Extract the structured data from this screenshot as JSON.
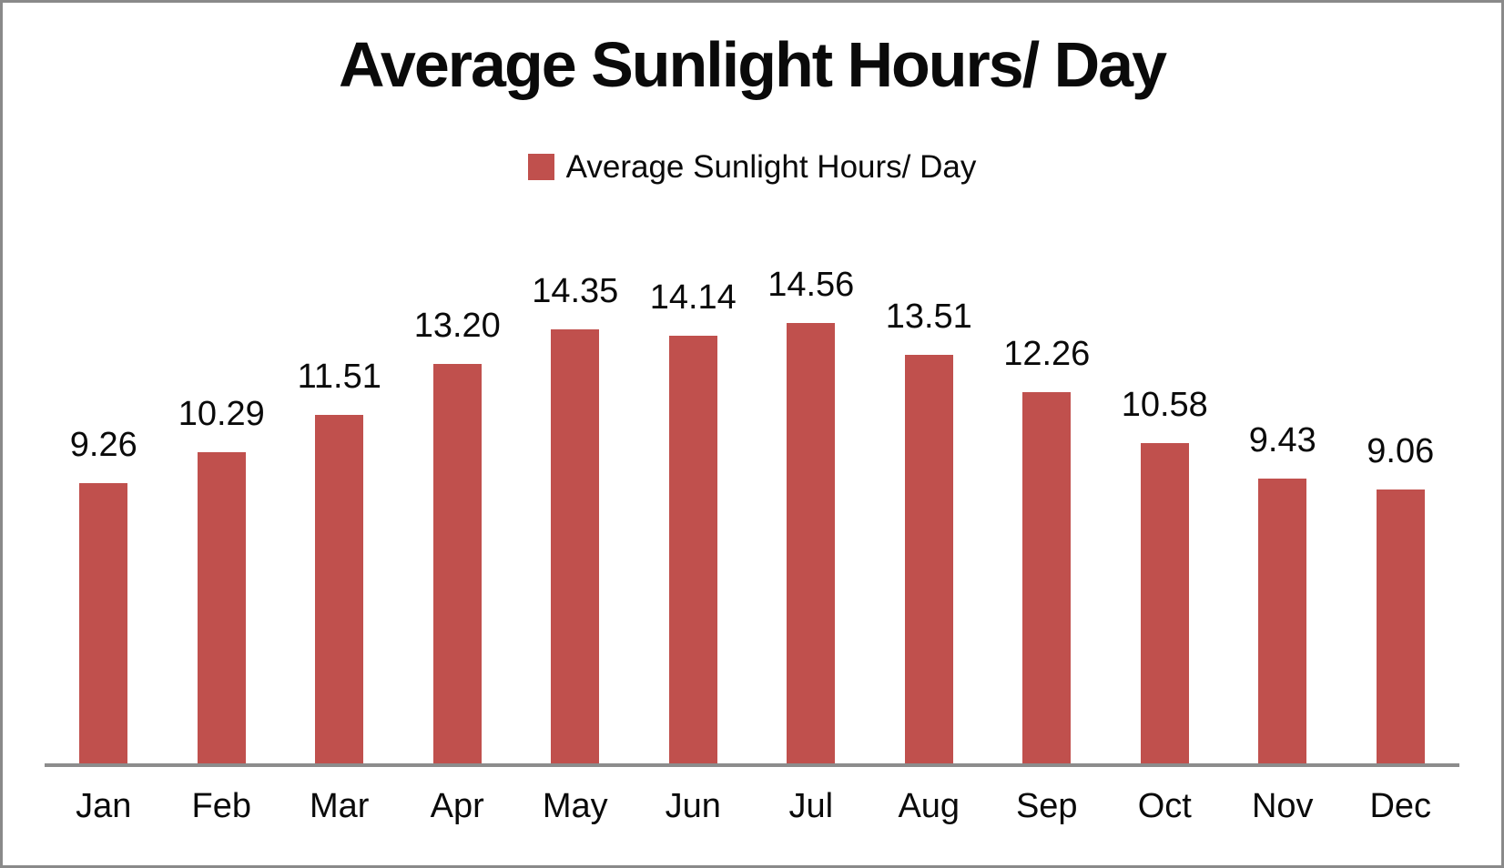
{
  "chart_data": {
    "type": "bar",
    "title": "Average Sunlight Hours/ Day",
    "legend_label": "Average Sunlight Hours/ Day",
    "legend_position": "top",
    "categories": [
      "Jan",
      "Feb",
      "Mar",
      "Apr",
      "May",
      "Jun",
      "Jul",
      "Aug",
      "Sep",
      "Oct",
      "Nov",
      "Dec"
    ],
    "values": [
      9.26,
      10.29,
      11.51,
      13.2,
      14.35,
      14.14,
      14.56,
      13.51,
      12.26,
      10.58,
      9.43,
      9.06
    ],
    "value_labels": [
      "9.26",
      "10.29",
      "11.51",
      "13.20",
      "14.35",
      "14.14",
      "14.56",
      "13.51",
      "12.26",
      "10.58",
      "9.43",
      "9.06"
    ],
    "data_labels": true,
    "grid": false,
    "xlabel": "",
    "ylabel": "",
    "ylim": [
      0,
      16.25
    ],
    "bar_color": "#C0504D",
    "axis_color": "#8C8C8C",
    "text_color": "#0A0A0A"
  }
}
